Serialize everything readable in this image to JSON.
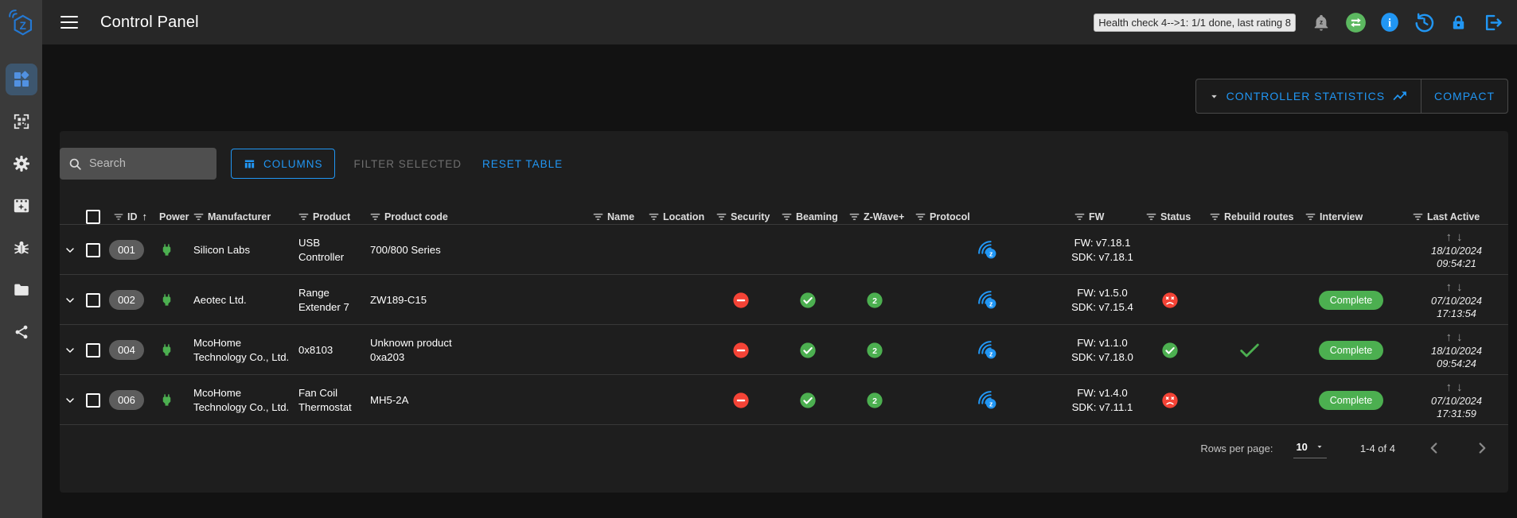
{
  "app": {
    "title": "Control Panel",
    "health_status": "Health check 4-->1: 1/1 done, last rating 8"
  },
  "topbar": {
    "icons": [
      "bell-sleep-icon",
      "swap-horizontal-icon",
      "info-icon",
      "history-icon",
      "lock-icon",
      "logout-icon"
    ]
  },
  "sidebar": {
    "items": [
      "control-panel",
      "smart-start-scan",
      "settings",
      "scenes",
      "debug",
      "store",
      "network-graph"
    ],
    "active_item": "control-panel"
  },
  "controls": {
    "controller_statistics_label": "CONTROLLER STATISTICS",
    "compact_label": "COMPACT"
  },
  "toolbar": {
    "search_placeholder": "Search",
    "columns_label": "COLUMNS",
    "filter_selected_label": "FILTER SELECTED",
    "reset_table_label": "RESET TABLE"
  },
  "table": {
    "columns": [
      {
        "label": "ID",
        "sorted": "asc"
      },
      {
        "label": "Power"
      },
      {
        "label": "Manufacturer"
      },
      {
        "label": "Product"
      },
      {
        "label": "Product code"
      },
      {
        "label": "Name"
      },
      {
        "label": "Location"
      },
      {
        "label": "Security"
      },
      {
        "label": "Beaming"
      },
      {
        "label": "Z-Wave+"
      },
      {
        "label": "Protocol"
      },
      {
        "label": "FW"
      },
      {
        "label": "Status"
      },
      {
        "label": "Rebuild routes"
      },
      {
        "label": "Interview"
      },
      {
        "label": "Last Active"
      }
    ],
    "rows": [
      {
        "id": "001",
        "power": "power-plug-icon",
        "manufacturer": "Silicon Labs",
        "product": "USB Controller",
        "product_code": "700/800 Series",
        "name": "",
        "location": "",
        "security": "",
        "beaming": "",
        "zwave_plus": "",
        "protocol": "zwave-signal-icon",
        "fw": "FW: v7.18.1",
        "sdk": "SDK: v7.18.1",
        "status": "",
        "rebuild_routes": "",
        "interview": "",
        "last_active_date": "18/10/2024",
        "last_active_time": "09:54:21"
      },
      {
        "id": "002",
        "power": "power-plug-icon",
        "manufacturer": "Aeotec Ltd.",
        "product": "Range Extender 7",
        "product_code": "ZW189-C15",
        "name": "",
        "location": "",
        "security": "minus-circle-icon",
        "beaming": "check-circle-icon",
        "zwave_plus": "2",
        "protocol": "zwave-signal-icon",
        "fw": "FW: v1.5.0",
        "sdk": "SDK: v7.15.4",
        "status": "dead-face-icon",
        "rebuild_routes": "",
        "interview": "Complete",
        "last_active_date": "07/10/2024",
        "last_active_time": "17:13:54"
      },
      {
        "id": "004",
        "power": "power-plug-icon",
        "manufacturer": "McoHome Technology Co., Ltd.",
        "product": "0x8103",
        "product_code": "Unknown product 0xa203",
        "name": "",
        "location": "",
        "security": "minus-circle-icon",
        "beaming": "check-circle-icon",
        "zwave_plus": "2",
        "protocol": "zwave-signal-icon",
        "fw": "FW: v1.1.0",
        "sdk": "SDK: v7.18.0",
        "status": "check-circle-icon",
        "rebuild_routes": "check-icon",
        "interview": "Complete",
        "last_active_date": "18/10/2024",
        "last_active_time": "09:54:24"
      },
      {
        "id": "006",
        "power": "power-plug-icon",
        "manufacturer": "McoHome Technology Co., Ltd.",
        "product": "Fan Coil Thermostat",
        "product_code": "MH5-2A",
        "name": "",
        "location": "",
        "security": "minus-circle-icon",
        "beaming": "check-circle-icon",
        "zwave_plus": "2",
        "protocol": "zwave-signal-icon",
        "fw": "FW: v1.4.0",
        "sdk": "SDK: v7.11.1",
        "status": "dead-face-icon",
        "rebuild_routes": "",
        "interview": "Complete",
        "last_active_date": "07/10/2024",
        "last_active_time": "17:31:59"
      }
    ]
  },
  "pagination": {
    "rows_per_page_label": "Rows per page:",
    "rows_per_page_value": "10",
    "range_label": "1-4 of 4"
  },
  "colors": {
    "accent": "#2196F3",
    "green": "#4CAF50",
    "red": "#F44336"
  }
}
